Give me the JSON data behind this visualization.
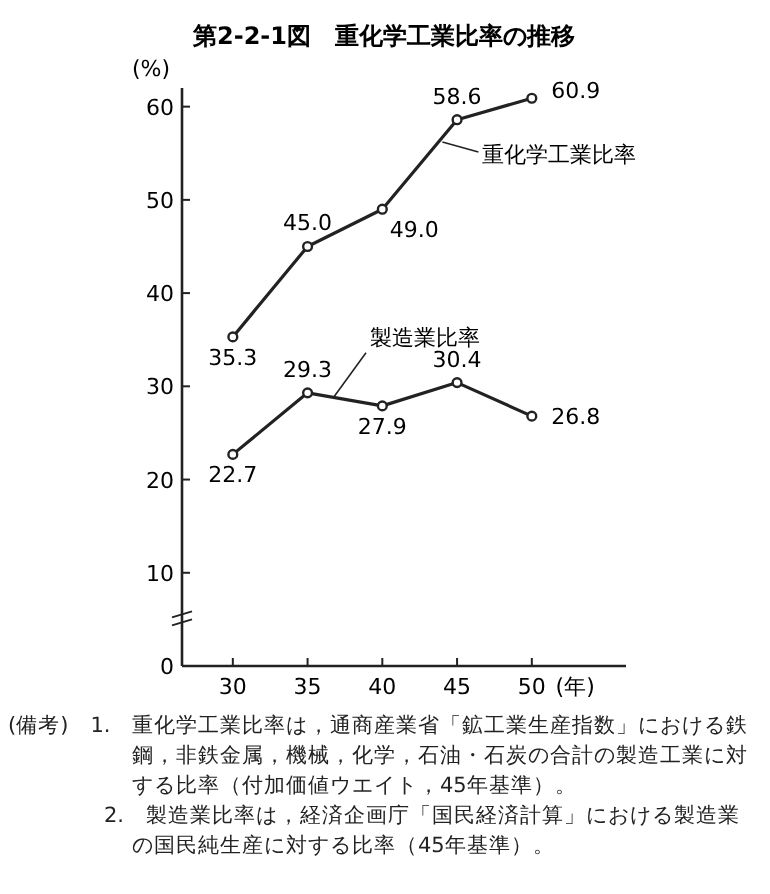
{
  "chart_data": {
    "type": "line",
    "title": "第2-2-1図　重化学工業比率の推移",
    "xlabel": "(年)",
    "ylabel": "(%)",
    "x": [
      30,
      35,
      40,
      45,
      50
    ],
    "xlim": [
      26.6,
      56.3
    ],
    "xticks": [
      30,
      35,
      40,
      45,
      50
    ],
    "ylim": [
      0,
      62
    ],
    "yticks": [
      0,
      10,
      20,
      30,
      40,
      50,
      60
    ],
    "series": [
      {
        "name": "重化学工業比率",
        "color": "#222222",
        "values": [
          35.3,
          45.0,
          49.0,
          58.6,
          60.9
        ],
        "value_labels": [
          "35.3",
          "45.0",
          "49.0",
          "58.6",
          "60.9"
        ]
      },
      {
        "name": "製造業比率",
        "color": "#222222",
        "values": [
          22.7,
          29.3,
          27.9,
          30.4,
          26.8
        ],
        "value_labels": [
          "22.7",
          "29.3",
          "27.9",
          "30.4",
          "26.8"
        ]
      }
    ],
    "marker": "circle",
    "line_style": "solid",
    "grid": false,
    "annotations": [
      "(備考)　1.　重化学工業比率は，通商産業省「鉱工業生産指数」における鉄鋼，非鉄金属，機械，化学，石油・石炭の合計の製造工業に対する比率（付加価値ウエイト，45年基準）。",
      "2.　製造業比率は，経済企画庁「国民経済計算」における製造業の国民純生産に対する比率（45年基準）。"
    ]
  }
}
